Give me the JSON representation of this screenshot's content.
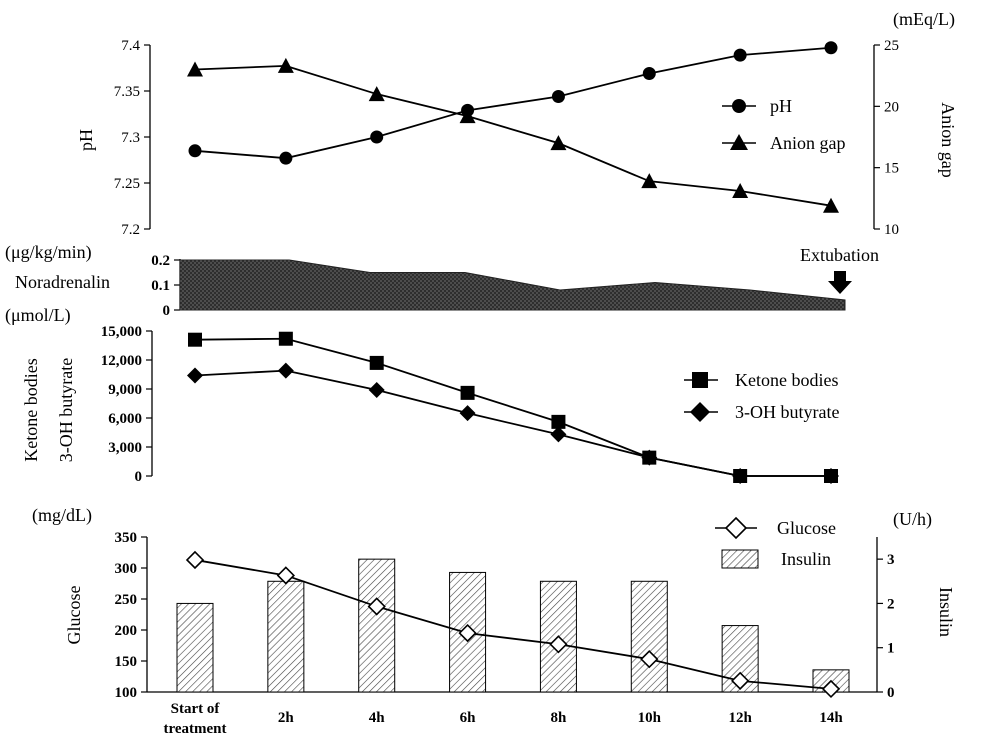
{
  "chart_data": [
    {
      "id": "acid_base",
      "type": "line",
      "categories": [
        "Start of treatment",
        "2h",
        "4h",
        "6h",
        "8h",
        "10h",
        "12h",
        "14h"
      ],
      "ylabel": "pH",
      "ylabel_right": "Anion gap",
      "unit_right": "(mEq/L)",
      "ylim": [
        7.2,
        7.4
      ],
      "yticks": [
        "7.2",
        "7.25",
        "7.3",
        "7.35",
        "7.4"
      ],
      "ylim_right": [
        10,
        25
      ],
      "yticks_right": [
        "10",
        "15",
        "20",
        "25"
      ],
      "legend_position": "right",
      "series": [
        {
          "name": "pH",
          "axis": "left",
          "marker": "circle",
          "values": [
            7.285,
            7.277,
            7.3,
            7.329,
            7.344,
            7.369,
            7.389,
            7.397
          ]
        },
        {
          "name": "Anion gap",
          "axis": "right",
          "marker": "triangle",
          "values": [
            23.0,
            23.3,
            21.0,
            19.2,
            17.0,
            13.9,
            13.1,
            11.9
          ]
        }
      ]
    },
    {
      "id": "noradrenalin",
      "type": "area",
      "label": "Noradrenalin",
      "unit": "(μg/kg/min)",
      "ylim": [
        0,
        0.2
      ],
      "yticks": [
        "0",
        "0.1",
        "0.2"
      ],
      "annotation": "Extubation",
      "x": [
        0,
        1,
        1.15,
        2,
        3,
        4,
        5,
        6,
        7
      ],
      "values": [
        0.2,
        0.2,
        0.2,
        0.15,
        0.15,
        0.08,
        0.11,
        0.08,
        0.04
      ]
    },
    {
      "id": "ketones",
      "type": "line",
      "categories": [
        "Start of treatment",
        "2h",
        "4h",
        "6h",
        "8h",
        "10h",
        "12h",
        "14h"
      ],
      "unit": "(μmol/L)",
      "ylabel": [
        "Ketone bodies",
        "3-OH butyrate"
      ],
      "ylim": [
        0,
        15000
      ],
      "yticks": [
        "0",
        "3,000",
        "6,000",
        "9,000",
        "12,000",
        "15,000"
      ],
      "legend_position": "right",
      "series": [
        {
          "name": "Ketone bodies",
          "marker": "square",
          "values": [
            14100,
            14200,
            11700,
            8600,
            5600,
            1900,
            0,
            0
          ]
        },
        {
          "name": "3-OH butyrate",
          "marker": "diamond",
          "values": [
            10400,
            10900,
            8900,
            6500,
            4300,
            1900,
            0,
            0
          ]
        }
      ]
    },
    {
      "id": "glucose_insulin",
      "type": "bar",
      "categories": [
        "Start of treatment",
        "2h",
        "4h",
        "6h",
        "8h",
        "10h",
        "12h",
        "14h"
      ],
      "ylabel": "Glucose",
      "unit": "(mg/dL)",
      "ylim": [
        100,
        350
      ],
      "yticks": [
        "100",
        "150",
        "200",
        "250",
        "300",
        "350"
      ],
      "ylabel_right": "Insulin",
      "unit_right": "(U/h)",
      "ylim_right": [
        0,
        3.5
      ],
      "yticks_right": [
        "0",
        "1",
        "2",
        "3"
      ],
      "legend_position": "top-right",
      "series": [
        {
          "name": "Glucose",
          "type": "line",
          "axis": "left",
          "marker": "open-diamond",
          "values": [
            313,
            288,
            238,
            195,
            177,
            153,
            118,
            105
          ]
        },
        {
          "name": "Insulin",
          "type": "bar",
          "axis": "right",
          "values": [
            2.0,
            2.5,
            3.0,
            2.7,
            2.5,
            2.5,
            1.5,
            0.5
          ]
        }
      ]
    }
  ]
}
